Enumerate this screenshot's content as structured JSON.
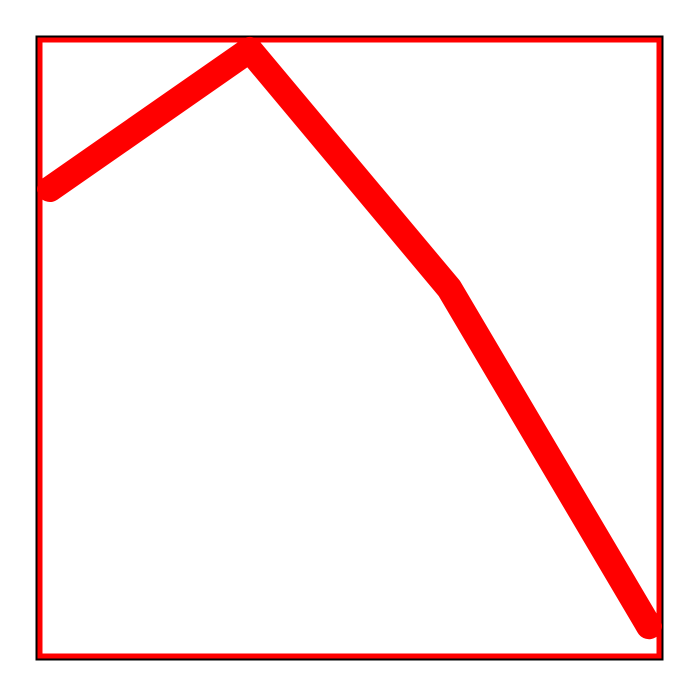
{
  "chart_data": {
    "type": "line",
    "title": "",
    "xlabel": "",
    "ylabel": "",
    "grid": false,
    "x": [
      0,
      1,
      2,
      3
    ],
    "xlim": [
      -0.05,
      3.05
    ],
    "ylim": [
      -0.05,
      3.05
    ],
    "series": [
      {
        "values": [
          2.3,
          3.0,
          1.8,
          0.1
        ]
      }
    ]
  },
  "colors": {
    "line": "#ff0000",
    "frame_outer": "#000000",
    "frame_inner": "#ff0000",
    "background": "#ffffff"
  }
}
